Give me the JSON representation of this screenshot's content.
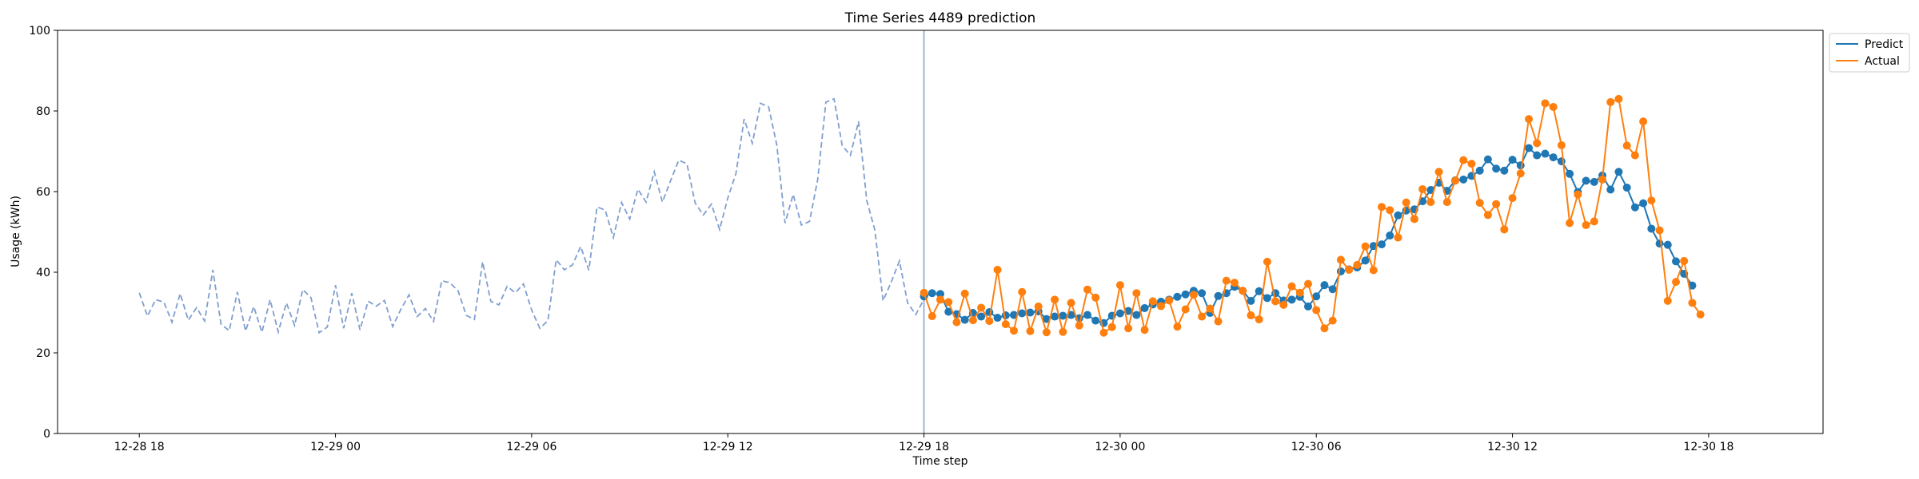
{
  "chart_data": {
    "type": "line",
    "title": "Time Series 4489 prediction",
    "xlabel": "Time step",
    "ylabel": "Usage (kWh)",
    "ylim": [
      0,
      100
    ],
    "yticks": [
      0,
      20,
      40,
      60,
      80,
      100
    ],
    "xlim": [
      "2022-12-28 15:30",
      "2022-12-30 21:30"
    ],
    "xticks": [
      {
        "label": "12-28 18",
        "value": "2022-12-28 18:00"
      },
      {
        "label": "12-29 00",
        "value": "2022-12-29 00:00"
      },
      {
        "label": "12-29 06",
        "value": "2022-12-29 06:00"
      },
      {
        "label": "12-29 12",
        "value": "2022-12-29 12:00"
      },
      {
        "label": "12-29 18",
        "value": "2022-12-29 18:00"
      },
      {
        "label": "12-30 00",
        "value": "2022-12-30 00:00"
      },
      {
        "label": "12-30 06",
        "value": "2022-12-30 06:00"
      },
      {
        "label": "12-30 12",
        "value": "2022-12-30 12:00"
      },
      {
        "label": "12-30 18",
        "value": "2022-12-30 18:00"
      }
    ],
    "grid": false,
    "legend_position": "outside-top-right",
    "forecast_start": "2022-12-29 18:00",
    "step_minutes": 15,
    "history": {
      "start": "2022-12-28 18:00",
      "color": "#7f9fcf",
      "style": "dashed",
      "values": [
        34.9,
        29.1,
        33.2,
        32.6,
        27.6,
        34.7,
        28.1,
        31.2,
        27.9,
        40.6,
        27.1,
        25.5,
        35.1,
        25.4,
        31.5,
        25.1,
        33.2,
        25.2,
        32.4,
        26.8,
        35.7,
        33.7,
        25.0,
        26.4,
        36.8,
        26.1,
        34.8,
        25.7,
        32.8,
        31.6,
        33.0,
        26.5,
        30.8,
        34.4,
        29.0,
        31.0,
        27.8,
        37.9,
        37.4,
        35.4,
        29.3,
        28.3,
        42.6,
        32.8,
        31.9,
        36.5,
        34.9,
        37.1,
        30.6,
        26.1,
        28.0,
        43.1,
        40.6,
        41.8,
        46.4,
        40.5,
        56.2,
        55.4,
        48.6,
        57.3,
        53.2,
        60.6,
        57.4,
        64.9,
        57.4,
        62.7,
        67.8,
        66.9,
        57.2,
        54.2,
        56.9,
        50.6,
        58.4,
        64.5,
        78.0,
        72.0,
        81.9,
        81.0,
        71.5,
        52.2,
        59.3,
        51.7,
        52.6,
        63.0,
        82.2,
        83.0,
        71.4,
        69.0,
        77.4,
        57.8,
        50.4,
        32.9,
        37.6,
        42.8,
        32.4,
        29.5,
        33.3
      ]
    },
    "series": [
      {
        "name": "Predict",
        "color": "#1f77b4",
        "start": "2022-12-29 18:00",
        "values": [
          34.0,
          34.8,
          34.6,
          30.2,
          29.6,
          28.2,
          29.9,
          29.0,
          30.1,
          28.7,
          29.3,
          29.4,
          29.8,
          30.0,
          30.3,
          28.4,
          29.0,
          29.2,
          29.4,
          28.6,
          29.4,
          28.0,
          27.4,
          29.2,
          29.8,
          30.4,
          29.4,
          31.1,
          32.0,
          32.7,
          33.2,
          33.9,
          34.5,
          35.4,
          34.8,
          29.9,
          34.1,
          34.8,
          36.4,
          35.4,
          32.9,
          35.3,
          33.6,
          34.8,
          33.0,
          33.2,
          33.9,
          31.5,
          34.0,
          36.8,
          35.8,
          40.2,
          40.7,
          41.2,
          42.9,
          46.5,
          46.9,
          49.1,
          54.1,
          55.3,
          55.6,
          57.6,
          60.4,
          62.2,
          60.2,
          62.8,
          63.0,
          63.9,
          65.2,
          68.0,
          65.7,
          65.2,
          67.9,
          66.5,
          70.8,
          69.0,
          69.4,
          68.5,
          67.5,
          64.4,
          59.9,
          62.7,
          62.4,
          64.0,
          60.5,
          64.9,
          61.0,
          56.1,
          57.1,
          50.8,
          47.1,
          46.8,
          42.7,
          39.6,
          36.7
        ]
      },
      {
        "name": "Actual",
        "color": "#ff7f0e",
        "start": "2022-12-29 18:00",
        "values": [
          34.9,
          29.1,
          33.2,
          32.6,
          27.6,
          34.7,
          28.1,
          31.2,
          27.9,
          40.6,
          27.1,
          25.5,
          35.1,
          25.4,
          31.5,
          25.1,
          33.2,
          25.2,
          32.4,
          26.8,
          35.7,
          33.7,
          25.0,
          26.4,
          36.8,
          26.1,
          34.8,
          25.7,
          32.8,
          31.6,
          33.0,
          26.5,
          30.8,
          34.4,
          29.0,
          31.0,
          27.8,
          37.9,
          37.4,
          35.4,
          29.3,
          28.3,
          42.6,
          32.8,
          31.9,
          36.5,
          34.9,
          37.1,
          30.6,
          26.1,
          28.0,
          43.1,
          40.6,
          41.8,
          46.4,
          40.5,
          56.2,
          55.4,
          48.6,
          57.3,
          53.2,
          60.6,
          57.4,
          64.9,
          57.4,
          62.7,
          67.8,
          66.9,
          57.2,
          54.2,
          56.9,
          50.6,
          58.4,
          64.5,
          78.0,
          72.0,
          81.9,
          81.0,
          71.5,
          52.2,
          59.3,
          51.7,
          52.6,
          63.0,
          82.2,
          83.0,
          71.4,
          69.0,
          77.4,
          57.8,
          50.4,
          32.9,
          37.6,
          42.8,
          32.4,
          29.5
        ]
      }
    ]
  }
}
